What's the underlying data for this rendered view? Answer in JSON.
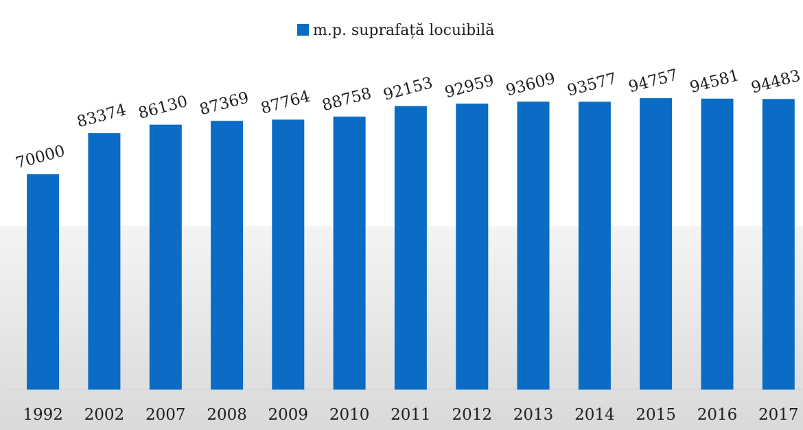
{
  "chart_data": {
    "type": "bar",
    "title": "",
    "xlabel": "",
    "ylabel": "",
    "legend": {
      "label": "m.p. suprafață locuibilă",
      "position": "top-center"
    },
    "categories": [
      "1992",
      "2002",
      "2007",
      "2008",
      "2009",
      "2010",
      "2011",
      "2012",
      "2013",
      "2014",
      "2015",
      "2016",
      "2017"
    ],
    "series": [
      {
        "name": "m.p. suprafață locuibilă",
        "values": [
          70000,
          83374,
          86130,
          87369,
          87764,
          88758,
          92153,
          92959,
          93609,
          93577,
          94757,
          94581,
          94483
        ]
      }
    ],
    "data_labels": [
      "70000",
      "83374",
      "86130",
      "87369",
      "87764",
      "88758",
      "92153",
      "92959",
      "93609",
      "93577",
      "94757",
      "94581",
      "94483"
    ],
    "ylim": [
      0,
      97000
    ],
    "grid": false,
    "colors": {
      "bar": "#0a6cc5",
      "text": "#1f1f1f",
      "band_top": "#f4f4f4",
      "band_bottom": "#d9d9d9"
    }
  }
}
